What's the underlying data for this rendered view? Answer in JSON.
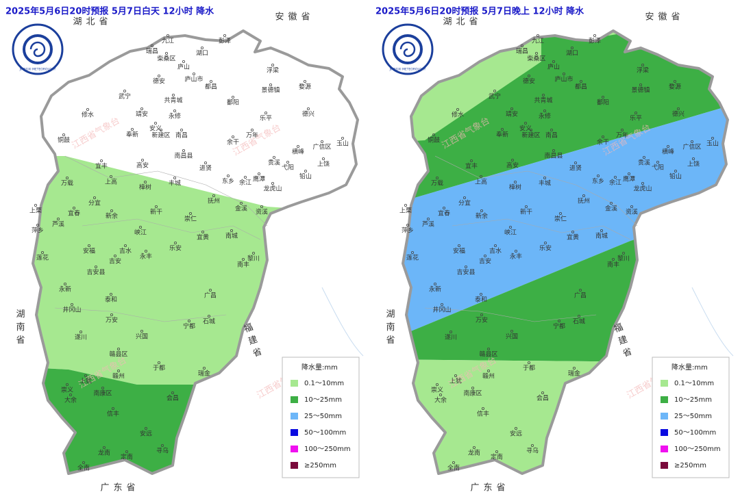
{
  "panels": [
    {
      "title": "2025年5月6日20时预报 5月7日白天 12小时 降水"
    },
    {
      "title": "2025年5月6日20时预报 5月7日晚上 12小时 降水"
    }
  ],
  "legend": {
    "title": "降水量:mm",
    "items": [
      {
        "label": "0.1～10mm",
        "color": "#a6e890"
      },
      {
        "label": "10～25mm",
        "color": "#3daf45"
      },
      {
        "label": "25～50mm",
        "color": "#6cb6f8"
      },
      {
        "label": "50～100mm",
        "color": "#0a0ae0"
      },
      {
        "label": "100～250mm",
        "color": "#f010f0"
      },
      {
        "label": "≥250mm",
        "color": "#7a0a3c"
      }
    ]
  },
  "provinces": [
    "湖北省",
    "安徽省",
    "湖南省",
    "福建省",
    "广东省"
  ],
  "watermark": "江西省气象台",
  "logo": "JIANGXI METEOROLOGY",
  "cities": [
    "九江",
    "彭泽",
    "湖口",
    "瑞昌",
    "柴桑区",
    "庐山",
    "庐山市",
    "都昌",
    "德安",
    "武宁",
    "共青城",
    "永修",
    "修水",
    "靖安",
    "安义",
    "奉新",
    "新建区",
    "南昌",
    "南昌县",
    "铜鼓",
    "宜丰",
    "高安",
    "进贤",
    "浮梁",
    "景德镇",
    "婺源",
    "鄱阳",
    "乐平",
    "德兴",
    "万年",
    "余干",
    "横峰",
    "广信区",
    "玉山",
    "上饶",
    "弋阳",
    "铅山",
    "贵溪",
    "鹰潭",
    "余江",
    "东乡",
    "龙虎山",
    "万载",
    "上高",
    "樟树",
    "丰城",
    "抚州",
    "金溪",
    "资溪",
    "分宜",
    "宜春",
    "新余",
    "新干",
    "崇仁",
    "上栗",
    "芦溪",
    "萍乡",
    "峡江",
    "宜黄",
    "南城",
    "黎川",
    "安福",
    "吉水",
    "乐安",
    "永丰",
    "莲花",
    "吉安",
    "吉安县",
    "南丰",
    "永新",
    "泰和",
    "井冈山",
    "广昌",
    "万安",
    "石城",
    "宁都",
    "遂川",
    "兴国",
    "赣县区",
    "于都",
    "瑞金",
    "赣州",
    "上犹",
    "崇义",
    "南康区",
    "大余",
    "会昌",
    "信丰",
    "安远",
    "寻乌",
    "龙南",
    "定南",
    "全南"
  ]
}
